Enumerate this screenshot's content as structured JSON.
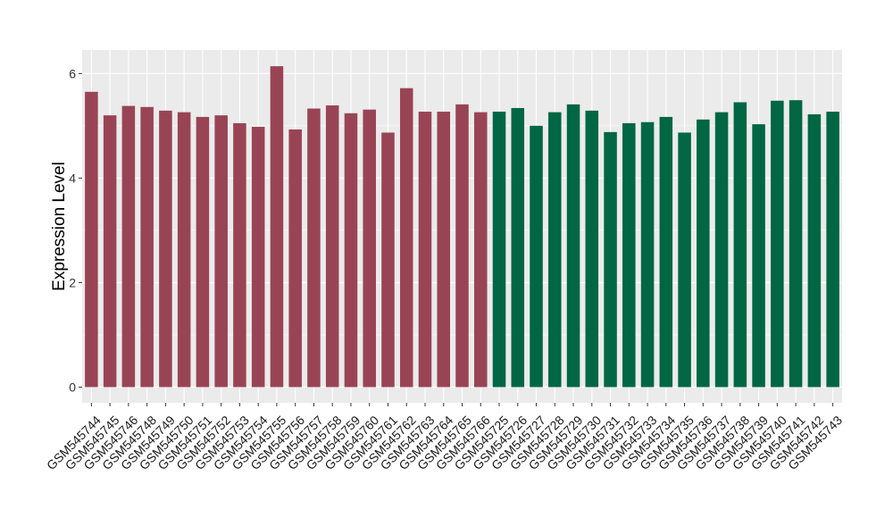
{
  "chart_data": {
    "type": "bar",
    "title": "",
    "xlabel": "",
    "ylabel": "Expression Level",
    "ylim": [
      -0.3,
      6.45
    ],
    "yticks": [
      0,
      2,
      4,
      6
    ],
    "grid": true,
    "legend": "none",
    "background_color": "#ebebeb",
    "gridline_color": "#ffffff",
    "group_colors": {
      "group_1": "#994455",
      "group_2": "#006644"
    },
    "categories": [
      "GSM545744",
      "GSM545745",
      "GSM545746",
      "GSM545748",
      "GSM545749",
      "GSM545750",
      "GSM545751",
      "GSM545752",
      "GSM545753",
      "GSM545754",
      "GSM545755",
      "GSM545756",
      "GSM545757",
      "GSM545758",
      "GSM545759",
      "GSM545760",
      "GSM545761",
      "GSM545762",
      "GSM545763",
      "GSM545764",
      "GSM545765",
      "GSM545766",
      "GSM545725",
      "GSM545726",
      "GSM545727",
      "GSM545728",
      "GSM545729",
      "GSM545730",
      "GSM545731",
      "GSM545732",
      "GSM545733",
      "GSM545734",
      "GSM545735",
      "GSM545736",
      "GSM545737",
      "GSM545738",
      "GSM545739",
      "GSM545740",
      "GSM545741",
      "GSM545742",
      "GSM545743"
    ],
    "values": [
      5.65,
      5.2,
      5.38,
      5.36,
      5.29,
      5.26,
      5.17,
      5.2,
      5.05,
      4.98,
      6.14,
      4.93,
      5.33,
      5.39,
      5.24,
      5.31,
      4.87,
      5.72,
      5.27,
      5.27,
      5.41,
      5.26,
      5.27,
      5.34,
      5.0,
      5.26,
      5.41,
      5.29,
      4.88,
      5.05,
      5.07,
      5.17,
      4.87,
      5.12,
      5.26,
      5.45,
      5.03,
      5.48,
      5.49,
      5.22,
      5.27
    ],
    "groups": [
      "group_1",
      "group_1",
      "group_1",
      "group_1",
      "group_1",
      "group_1",
      "group_1",
      "group_1",
      "group_1",
      "group_1",
      "group_1",
      "group_1",
      "group_1",
      "group_1",
      "group_1",
      "group_1",
      "group_1",
      "group_1",
      "group_1",
      "group_1",
      "group_1",
      "group_1",
      "group_2",
      "group_2",
      "group_2",
      "group_2",
      "group_2",
      "group_2",
      "group_2",
      "group_2",
      "group_2",
      "group_2",
      "group_2",
      "group_2",
      "group_2",
      "group_2",
      "group_2",
      "group_2",
      "group_2",
      "group_2",
      "group_2"
    ]
  }
}
